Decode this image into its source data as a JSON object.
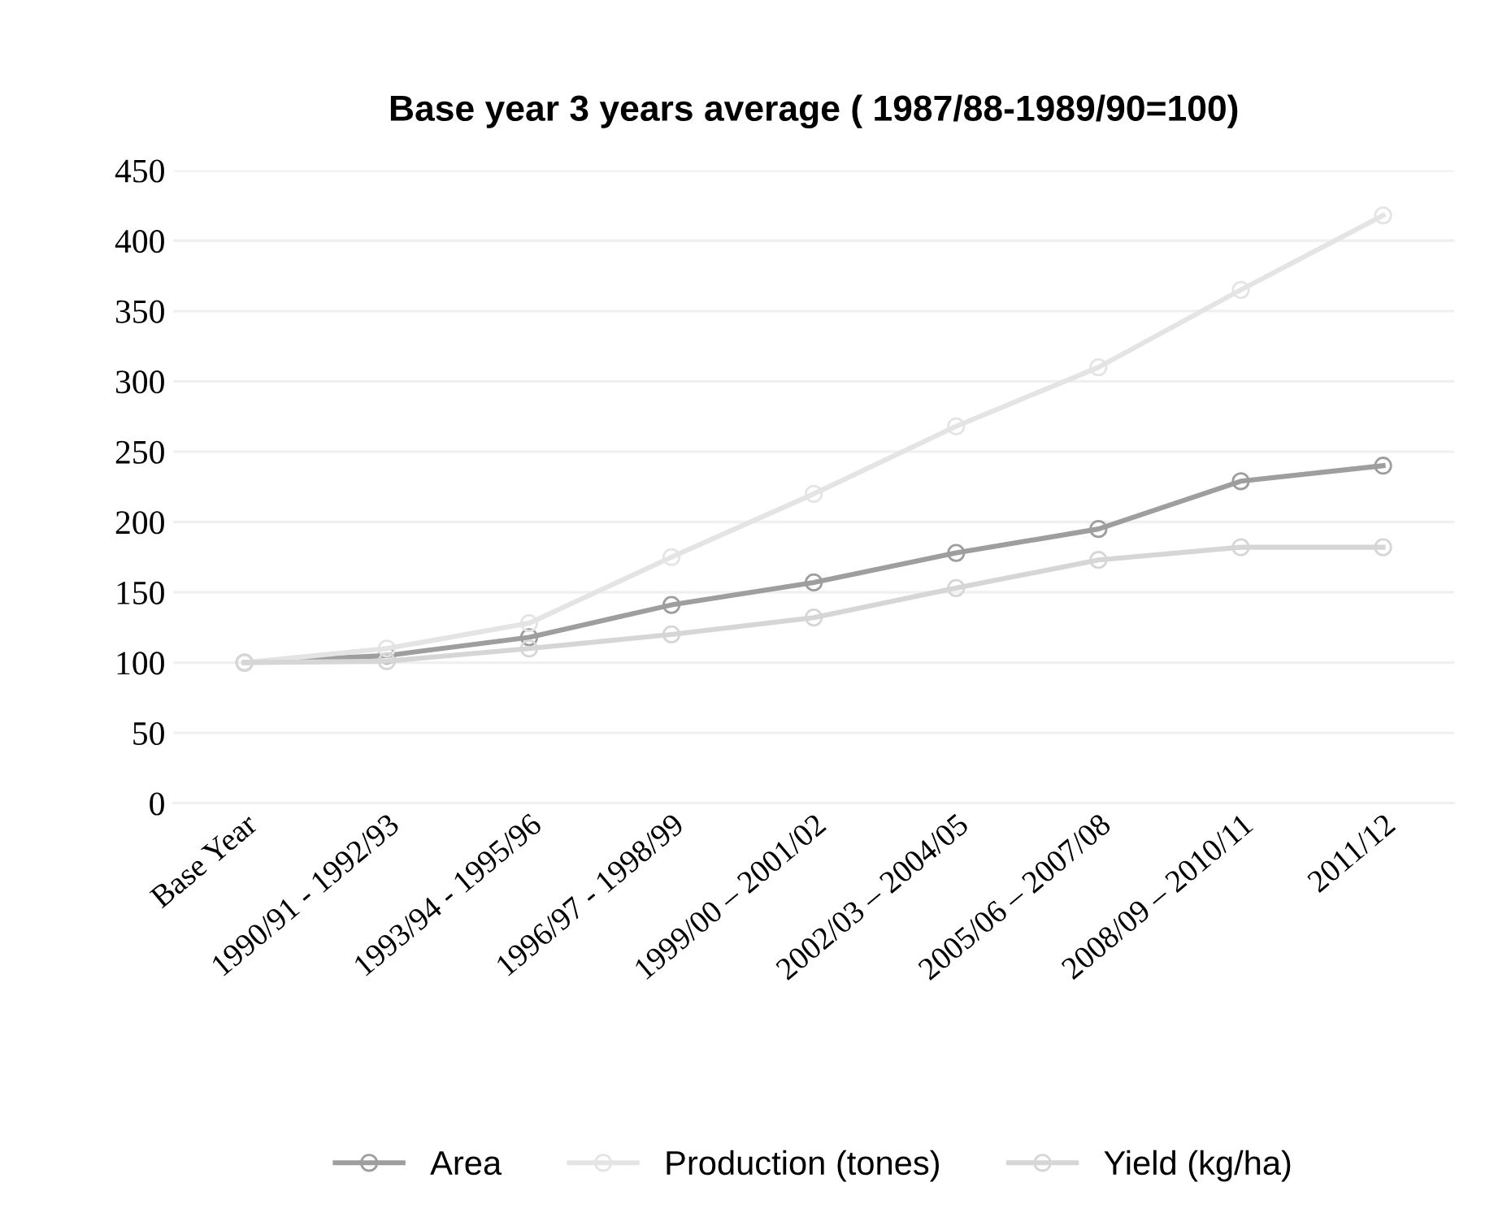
{
  "chart_data": {
    "type": "line",
    "title": "Base year 3 years average ( 1987/88-1989/90=100)",
    "categories": [
      "Base Year",
      "1990/91 - 1992/93",
      "1993/94 - 1995/96",
      "1996/97 - 1998/99",
      "1999/00 – 2001/02",
      "2002/03 – 2004/05",
      "2005/06 – 2007/08",
      "2008/09 – 2010/11",
      "2011/12"
    ],
    "series": [
      {
        "name": "Area",
        "color": "#9e9e9e",
        "values": [
          100,
          105,
          118,
          141,
          157,
          178,
          195,
          229,
          240
        ]
      },
      {
        "name": "Production (tones)",
        "color": "#e4e4e4",
        "values": [
          100,
          110,
          128,
          175,
          220,
          268,
          310,
          365,
          418
        ]
      },
      {
        "name": "Yield (kg/ha)",
        "color": "#d6d6d6",
        "values": [
          100,
          101,
          110,
          120,
          132,
          153,
          173,
          182,
          182
        ]
      }
    ],
    "ylim": [
      0,
      450
    ],
    "yticks": [
      0,
      50,
      100,
      150,
      200,
      250,
      300,
      350,
      400,
      450
    ],
    "grid": "y",
    "legend": "bottom",
    "marker": "circle",
    "line_style": "solid"
  }
}
